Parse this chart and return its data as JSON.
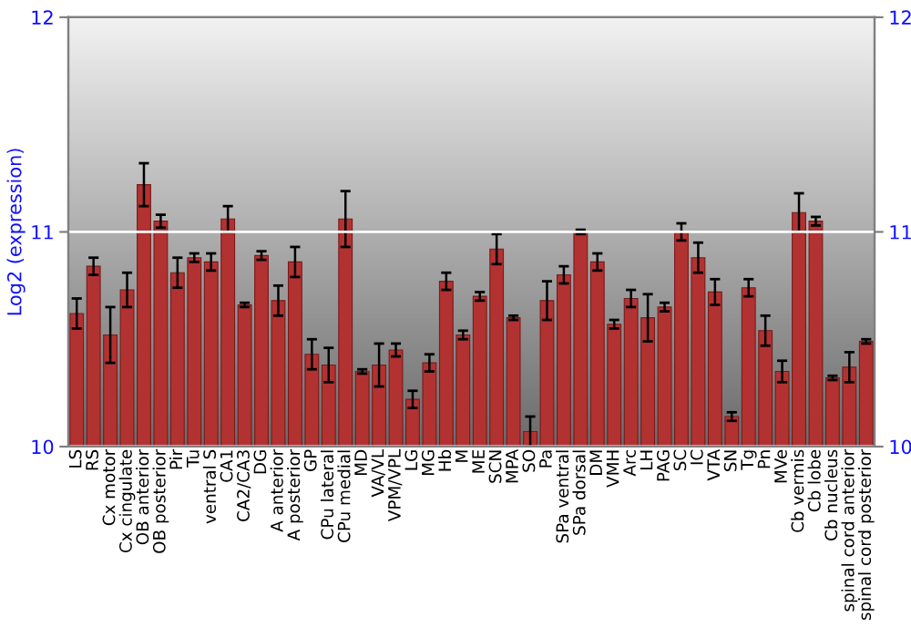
{
  "chart_data": {
    "type": "bar",
    "ylabel": "Log2 (expression)",
    "categories": [
      "LS",
      "RS",
      "Cx motor",
      "Cx cingulate",
      "OB anterior",
      "OB posterior",
      "Pir",
      "Tu",
      "ventral S",
      "CA1",
      "CA2/CA3",
      "DG",
      "A anterior",
      "A posterior",
      "GP",
      "CPu lateral",
      "CPu medial",
      "MD",
      "VA/VL",
      "VPM/VPL",
      "LG",
      "MG",
      "Hb",
      "M",
      "ME",
      "SCN",
      "MPA",
      "SO",
      "Pa",
      "SPa ventral",
      "SPa dorsal",
      "DM",
      "VMH",
      "Arc",
      "LH",
      "PAG",
      "SC",
      "IC",
      "VTA",
      "SN",
      "Tg",
      "Pn",
      "MVe",
      "Cb vermis",
      "Cb lobe",
      "Cb nucleus",
      "spinal cord anterior",
      "spinal cord posterior"
    ],
    "values": [
      10.62,
      10.84,
      10.52,
      10.73,
      11.22,
      11.05,
      10.81,
      10.88,
      10.86,
      11.06,
      10.66,
      10.89,
      10.68,
      10.86,
      10.43,
      10.38,
      11.06,
      10.35,
      10.38,
      10.45,
      10.22,
      10.39,
      10.77,
      10.52,
      10.7,
      10.92,
      10.6,
      10.07,
      10.68,
      10.8,
      11.0,
      10.86,
      10.57,
      10.69,
      10.6,
      10.65,
      11.0,
      10.88,
      10.72,
      10.14,
      10.74,
      10.54,
      10.35,
      11.09,
      11.05,
      10.32,
      10.37,
      10.49
    ],
    "errors": [
      0.07,
      0.04,
      0.13,
      0.08,
      0.1,
      0.03,
      0.07,
      0.02,
      0.04,
      0.06,
      0.01,
      0.02,
      0.07,
      0.07,
      0.07,
      0.08,
      0.13,
      0.01,
      0.1,
      0.03,
      0.04,
      0.04,
      0.04,
      0.02,
      0.02,
      0.07,
      0.01,
      0.07,
      0.09,
      0.04,
      0.01,
      0.04,
      0.02,
      0.04,
      0.11,
      0.02,
      0.04,
      0.07,
      0.06,
      0.02,
      0.04,
      0.07,
      0.05,
      0.09,
      0.02,
      0.01,
      0.07,
      0.01
    ],
    "color": "#b23232",
    "ylim": [
      10,
      12
    ],
    "yticks": [
      10,
      11,
      12
    ],
    "y2lim": [
      10,
      12
    ],
    "y2ticks": [
      10,
      11,
      12
    ],
    "grid": "y"
  }
}
